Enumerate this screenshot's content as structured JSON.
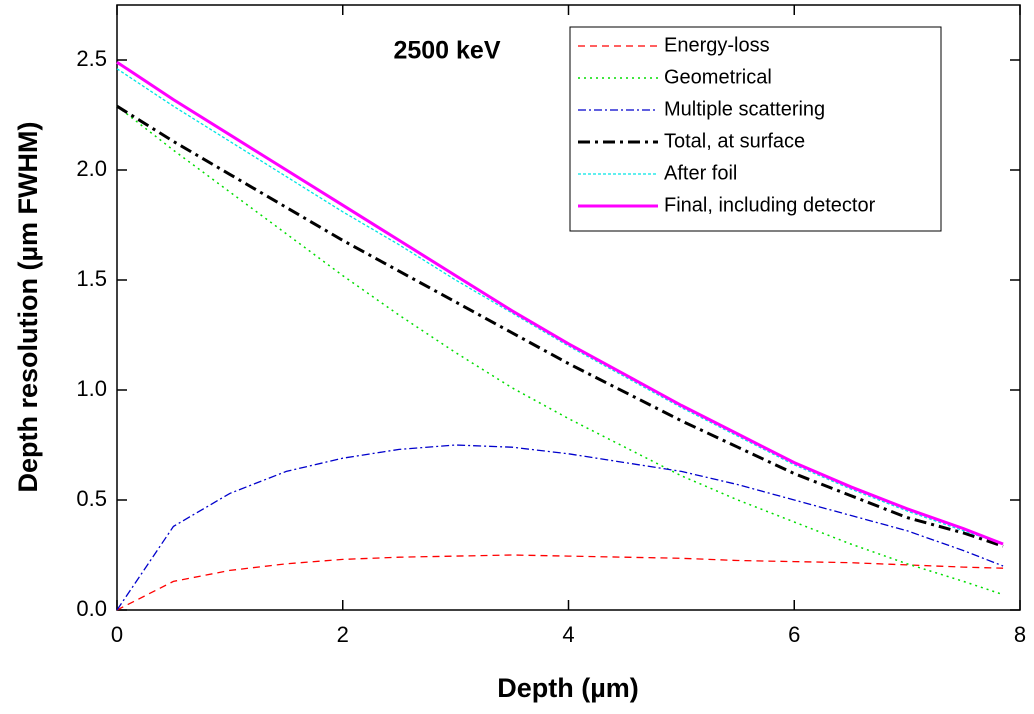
{
  "chart_data": {
    "type": "line",
    "annotation": "2500 keV",
    "x_label": "Depth (µm)",
    "y_label": "Depth resolution (µm FWHM)",
    "x": [
      0,
      0.5,
      1,
      1.5,
      2,
      2.5,
      3,
      3.5,
      4,
      4.5,
      5,
      5.5,
      6,
      6.5,
      7,
      7.5,
      7.85
    ],
    "series": [
      {
        "name": "Energy-loss",
        "color": "#ff0000",
        "dash": "7,5",
        "width": 1.3,
        "values": [
          0,
          0.13,
          0.18,
          0.21,
          0.23,
          0.24,
          0.245,
          0.25,
          0.245,
          0.24,
          0.235,
          0.225,
          0.22,
          0.215,
          0.205,
          0.195,
          0.19
        ]
      },
      {
        "name": "Geometrical",
        "color": "#00dd00",
        "dash": "2,4",
        "width": 1.5,
        "values": [
          2.29,
          2.09,
          1.9,
          1.71,
          1.52,
          1.34,
          1.17,
          1.01,
          0.87,
          0.74,
          0.61,
          0.5,
          0.4,
          0.3,
          0.21,
          0.13,
          0.07
        ]
      },
      {
        "name": "Multiple scattering",
        "color": "#0000cc",
        "dash": "8,3,2,3",
        "width": 1.3,
        "values": [
          0,
          0.38,
          0.53,
          0.63,
          0.69,
          0.73,
          0.75,
          0.74,
          0.71,
          0.67,
          0.63,
          0.57,
          0.5,
          0.43,
          0.36,
          0.27,
          0.2
        ]
      },
      {
        "name": "Total, at surface",
        "color": "#000000",
        "dash": "12,5,3,5",
        "width": 3,
        "values": [
          2.29,
          2.13,
          1.98,
          1.83,
          1.68,
          1.54,
          1.4,
          1.26,
          1.12,
          0.99,
          0.86,
          0.74,
          0.62,
          0.52,
          0.42,
          0.35,
          0.29
        ]
      },
      {
        "name": "After foil",
        "color": "#00e5e5",
        "dash": "3,2",
        "width": 1.3,
        "values": [
          2.46,
          2.29,
          2.13,
          1.97,
          1.81,
          1.66,
          1.5,
          1.35,
          1.2,
          1.06,
          0.92,
          0.79,
          0.66,
          0.55,
          0.45,
          0.36,
          0.3
        ]
      },
      {
        "name": "Final, including detector",
        "color": "#ff00ff",
        "dash": "none",
        "width": 3,
        "values": [
          2.49,
          2.32,
          2.16,
          2.0,
          1.84,
          1.68,
          1.52,
          1.36,
          1.21,
          1.07,
          0.93,
          0.8,
          0.67,
          0.56,
          0.46,
          0.37,
          0.3
        ]
      }
    ],
    "xlim": [
      0,
      8
    ],
    "xticks": [
      0,
      2,
      4,
      6,
      8
    ],
    "ylim": [
      0,
      2.75
    ],
    "yticks": [
      {
        "value": 0,
        "label": "0.0"
      },
      0.5,
      {
        "value": 1,
        "label": "1.0"
      },
      1.5,
      {
        "value": 2,
        "label": "2.0"
      },
      2.5
    ],
    "legend": "upper right",
    "grid": false
  }
}
